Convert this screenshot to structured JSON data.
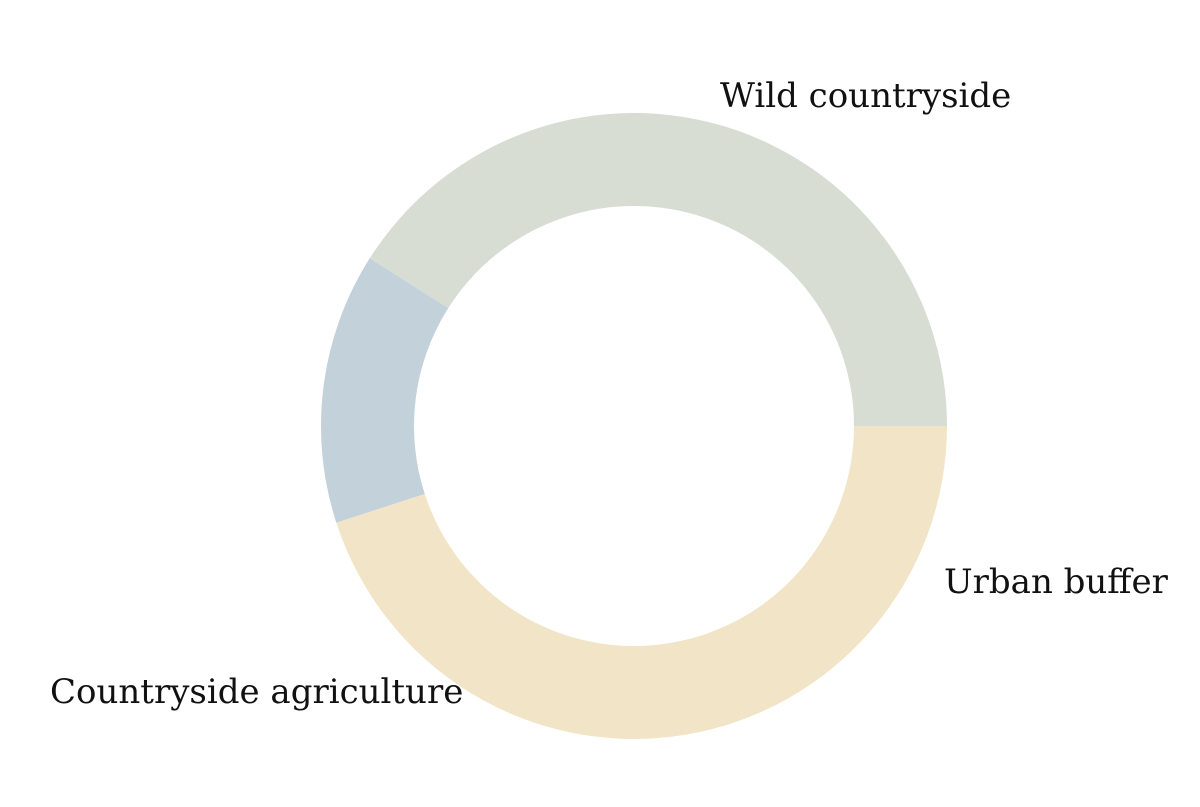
{
  "chart_data": {
    "type": "pie",
    "variant": "donut",
    "title": "",
    "categories": [
      "Wild countryside",
      "Urban buffer",
      "Countryside agriculture"
    ],
    "values": [
      41,
      14,
      45
    ],
    "unit": "%",
    "colors": [
      "#d7ddd3",
      "#c2d1da",
      "#f2e5c7"
    ],
    "legend": "none",
    "start_direction": "3 o'clock",
    "order": "counter-clockwise"
  }
}
